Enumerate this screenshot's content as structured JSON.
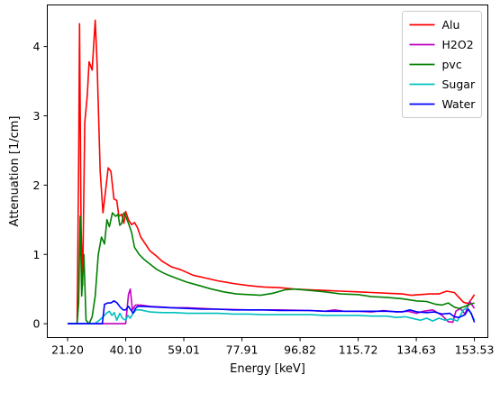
{
  "chart_data": {
    "type": "line",
    "xlabel": "Energy [keV]",
    "ylabel": "Attenuation [1/cm]",
    "xlim": [
      14.6,
      157.9
    ],
    "ylim": [
      -0.2,
      4.6
    ],
    "xticks": [
      21.2,
      40.1,
      59.01,
      77.91,
      96.82,
      115.72,
      134.63,
      153.53
    ],
    "xtick_labels": [
      "21.20",
      "40.10",
      "59.01",
      "77.91",
      "96.82",
      "115.72",
      "134.63",
      "153.53"
    ],
    "yticks": [
      0,
      1,
      2,
      3,
      4
    ],
    "ytick_labels": [
      "0",
      "1",
      "2",
      "3",
      "4"
    ],
    "grid": false,
    "legend_position": "top-right",
    "series": [
      {
        "name": "Alu",
        "color": "#ff0000",
        "points": [
          [
            21.2,
            0
          ],
          [
            24.3,
            0
          ],
          [
            24.8,
            2.3
          ],
          [
            25.1,
            4.33
          ],
          [
            25.6,
            1.4
          ],
          [
            26.1,
            0.55
          ],
          [
            26.8,
            2.9
          ],
          [
            27.6,
            3.3
          ],
          [
            28.2,
            3.78
          ],
          [
            29.2,
            3.66
          ],
          [
            30.2,
            4.38
          ],
          [
            30.8,
            3.75
          ],
          [
            31.8,
            2.2
          ],
          [
            32.7,
            1.6
          ],
          [
            33.5,
            1.9
          ],
          [
            34.4,
            2.25
          ],
          [
            35.3,
            2.2
          ],
          [
            36.3,
            1.8
          ],
          [
            37.2,
            1.78
          ],
          [
            37.9,
            1.55
          ],
          [
            38.8,
            1.58
          ],
          [
            39.5,
            1.45
          ],
          [
            40.1,
            1.62
          ],
          [
            41.0,
            1.5
          ],
          [
            42.0,
            1.43
          ],
          [
            43.0,
            1.46
          ],
          [
            44.0,
            1.38
          ],
          [
            45.0,
            1.25
          ],
          [
            46.5,
            1.15
          ],
          [
            48.0,
            1.05
          ],
          [
            50.0,
            0.98
          ],
          [
            52.0,
            0.9
          ],
          [
            55.0,
            0.82
          ],
          [
            58.0,
            0.78
          ],
          [
            62.0,
            0.7
          ],
          [
            66.0,
            0.66
          ],
          [
            70.0,
            0.62
          ],
          [
            75.0,
            0.58
          ],
          [
            80.0,
            0.55
          ],
          [
            85.0,
            0.53
          ],
          [
            90.0,
            0.52
          ],
          [
            95.0,
            0.5
          ],
          [
            100.0,
            0.49
          ],
          [
            105.0,
            0.48
          ],
          [
            110.0,
            0.47
          ],
          [
            115.72,
            0.46
          ],
          [
            120.0,
            0.45
          ],
          [
            125.0,
            0.44
          ],
          [
            130.0,
            0.43
          ],
          [
            133.0,
            0.41
          ],
          [
            136.0,
            0.42
          ],
          [
            139.0,
            0.43
          ],
          [
            142.0,
            0.43
          ],
          [
            144.5,
            0.47
          ],
          [
            147.0,
            0.45
          ],
          [
            148.5,
            0.38
          ],
          [
            150.0,
            0.31
          ],
          [
            151.5,
            0.29
          ],
          [
            152.5,
            0.35
          ],
          [
            153.53,
            0.42
          ]
        ]
      },
      {
        "name": "H2O2",
        "color": "#bf00bf",
        "points": [
          [
            21.2,
            0
          ],
          [
            35.0,
            0
          ],
          [
            39.0,
            0
          ],
          [
            40.1,
            0
          ],
          [
            41.0,
            0.42
          ],
          [
            41.6,
            0.5
          ],
          [
            42.3,
            0.2
          ],
          [
            43.3,
            0.27
          ],
          [
            45.0,
            0.27
          ],
          [
            48.0,
            0.25
          ],
          [
            52.0,
            0.24
          ],
          [
            55.0,
            0.23
          ],
          [
            60.0,
            0.23
          ],
          [
            65.0,
            0.22
          ],
          [
            70.0,
            0.21
          ],
          [
            80.0,
            0.2
          ],
          [
            90.0,
            0.2
          ],
          [
            100.0,
            0.19
          ],
          [
            105.0,
            0.18
          ],
          [
            108.0,
            0.2
          ],
          [
            111.0,
            0.18
          ],
          [
            115.72,
            0.18
          ],
          [
            120.0,
            0.17
          ],
          [
            124.0,
            0.19
          ],
          [
            128.0,
            0.17
          ],
          [
            132.0,
            0.18
          ],
          [
            134.63,
            0.15
          ],
          [
            137.0,
            0.18
          ],
          [
            140.0,
            0.2
          ],
          [
            143.0,
            0.12
          ],
          [
            145.0,
            0.03
          ],
          [
            146.5,
            0.02
          ],
          [
            147.5,
            0.18
          ],
          [
            149.0,
            0.22
          ],
          [
            150.5,
            0.14
          ],
          [
            152.0,
            0.32
          ],
          [
            153.53,
            0.22
          ]
        ]
      },
      {
        "name": "pvc",
        "color": "#008000",
        "points": [
          [
            21.2,
            0
          ],
          [
            24.3,
            0
          ],
          [
            24.8,
            0.3
          ],
          [
            25.3,
            1.55
          ],
          [
            25.8,
            0.4
          ],
          [
            26.5,
            1.0
          ],
          [
            27.2,
            0.05
          ],
          [
            28.2,
            0.0
          ],
          [
            29.2,
            0.1
          ],
          [
            30.2,
            0.4
          ],
          [
            31.2,
            1.0
          ],
          [
            32.2,
            1.25
          ],
          [
            33.2,
            1.15
          ],
          [
            34.0,
            1.5
          ],
          [
            34.8,
            1.4
          ],
          [
            35.8,
            1.6
          ],
          [
            36.8,
            1.55
          ],
          [
            37.6,
            1.58
          ],
          [
            38.2,
            1.42
          ],
          [
            38.8,
            1.45
          ],
          [
            39.5,
            1.6
          ],
          [
            40.1,
            1.55
          ],
          [
            41.0,
            1.45
          ],
          [
            42.0,
            1.32
          ],
          [
            43.0,
            1.1
          ],
          [
            44.5,
            1.0
          ],
          [
            46.0,
            0.93
          ],
          [
            48.0,
            0.86
          ],
          [
            50.0,
            0.79
          ],
          [
            52.0,
            0.74
          ],
          [
            54.0,
            0.7
          ],
          [
            57.0,
            0.65
          ],
          [
            60.0,
            0.6
          ],
          [
            64.0,
            0.55
          ],
          [
            68.0,
            0.5
          ],
          [
            72.0,
            0.46
          ],
          [
            76.0,
            0.43
          ],
          [
            80.0,
            0.42
          ],
          [
            84.0,
            0.41
          ],
          [
            88.0,
            0.44
          ],
          [
            92.0,
            0.49
          ],
          [
            95.0,
            0.5
          ],
          [
            100.0,
            0.48
          ],
          [
            105.0,
            0.46
          ],
          [
            110.0,
            0.43
          ],
          [
            115.72,
            0.42
          ],
          [
            120.0,
            0.39
          ],
          [
            125.0,
            0.38
          ],
          [
            130.0,
            0.36
          ],
          [
            134.63,
            0.33
          ],
          [
            138.0,
            0.32
          ],
          [
            141.0,
            0.28
          ],
          [
            143.0,
            0.27
          ],
          [
            145.0,
            0.3
          ],
          [
            147.0,
            0.24
          ],
          [
            148.5,
            0.22
          ],
          [
            150.5,
            0.25
          ],
          [
            152.0,
            0.28
          ],
          [
            153.53,
            0.3
          ]
        ]
      },
      {
        "name": "Sugar",
        "color": "#00bfbf",
        "points": [
          [
            21.2,
            0
          ],
          [
            30.0,
            0
          ],
          [
            31.5,
            0.05
          ],
          [
            32.8,
            0.1
          ],
          [
            33.8,
            0.15
          ],
          [
            34.8,
            0.18
          ],
          [
            35.6,
            0.12
          ],
          [
            36.4,
            0.16
          ],
          [
            37.2,
            0.05
          ],
          [
            38.2,
            0.15
          ],
          [
            39.0,
            0.08
          ],
          [
            40.1,
            0.05
          ],
          [
            40.8,
            0.12
          ],
          [
            41.6,
            0.08
          ],
          [
            42.5,
            0.15
          ],
          [
            43.5,
            0.2
          ],
          [
            45.0,
            0.2
          ],
          [
            48.0,
            0.17
          ],
          [
            52.0,
            0.16
          ],
          [
            56.0,
            0.16
          ],
          [
            60.0,
            0.15
          ],
          [
            65.0,
            0.15
          ],
          [
            70.0,
            0.15
          ],
          [
            75.0,
            0.14
          ],
          [
            80.0,
            0.14
          ],
          [
            85.0,
            0.13
          ],
          [
            90.0,
            0.13
          ],
          [
            96.82,
            0.13
          ],
          [
            100.0,
            0.13
          ],
          [
            105.0,
            0.12
          ],
          [
            110.0,
            0.12
          ],
          [
            115.72,
            0.12
          ],
          [
            120.0,
            0.11
          ],
          [
            125.0,
            0.11
          ],
          [
            128.0,
            0.09
          ],
          [
            131.0,
            0.1
          ],
          [
            134.0,
            0.07
          ],
          [
            136.0,
            0.05
          ],
          [
            138.0,
            0.08
          ],
          [
            140.0,
            0.04
          ],
          [
            142.0,
            0.08
          ],
          [
            144.0,
            0.05
          ],
          [
            146.0,
            0.07
          ],
          [
            148.0,
            0.04
          ],
          [
            150.0,
            0.2
          ],
          [
            151.0,
            0.23
          ],
          [
            152.0,
            0.18
          ],
          [
            153.53,
            0.05
          ]
        ]
      },
      {
        "name": "Water",
        "color": "#0000ff",
        "points": [
          [
            21.2,
            0
          ],
          [
            32.5,
            0
          ],
          [
            33.2,
            0.28
          ],
          [
            34.3,
            0.3
          ],
          [
            35.3,
            0.3
          ],
          [
            36.3,
            0.33
          ],
          [
            37.3,
            0.3
          ],
          [
            38.3,
            0.24
          ],
          [
            39.3,
            0.2
          ],
          [
            40.1,
            0.2
          ],
          [
            41.0,
            0.25
          ],
          [
            41.8,
            0.2
          ],
          [
            42.5,
            0.15
          ],
          [
            43.3,
            0.22
          ],
          [
            44.0,
            0.25
          ],
          [
            46.0,
            0.25
          ],
          [
            50.0,
            0.24
          ],
          [
            55.0,
            0.23
          ],
          [
            60.0,
            0.22
          ],
          [
            65.0,
            0.21
          ],
          [
            70.0,
            0.21
          ],
          [
            75.0,
            0.2
          ],
          [
            80.0,
            0.2
          ],
          [
            85.0,
            0.2
          ],
          [
            90.0,
            0.19
          ],
          [
            96.82,
            0.19
          ],
          [
            100.0,
            0.19
          ],
          [
            105.0,
            0.18
          ],
          [
            110.0,
            0.18
          ],
          [
            115.72,
            0.18
          ],
          [
            120.0,
            0.18
          ],
          [
            125.0,
            0.18
          ],
          [
            130.0,
            0.17
          ],
          [
            132.5,
            0.2
          ],
          [
            135.0,
            0.17
          ],
          [
            138.0,
            0.16
          ],
          [
            140.5,
            0.17
          ],
          [
            143.0,
            0.14
          ],
          [
            145.5,
            0.15
          ],
          [
            147.0,
            0.1
          ],
          [
            148.5,
            0.09
          ],
          [
            150.5,
            0.13
          ],
          [
            151.5,
            0.21
          ],
          [
            152.5,
            0.15
          ],
          [
            153.53,
            0.02
          ]
        ]
      }
    ]
  }
}
